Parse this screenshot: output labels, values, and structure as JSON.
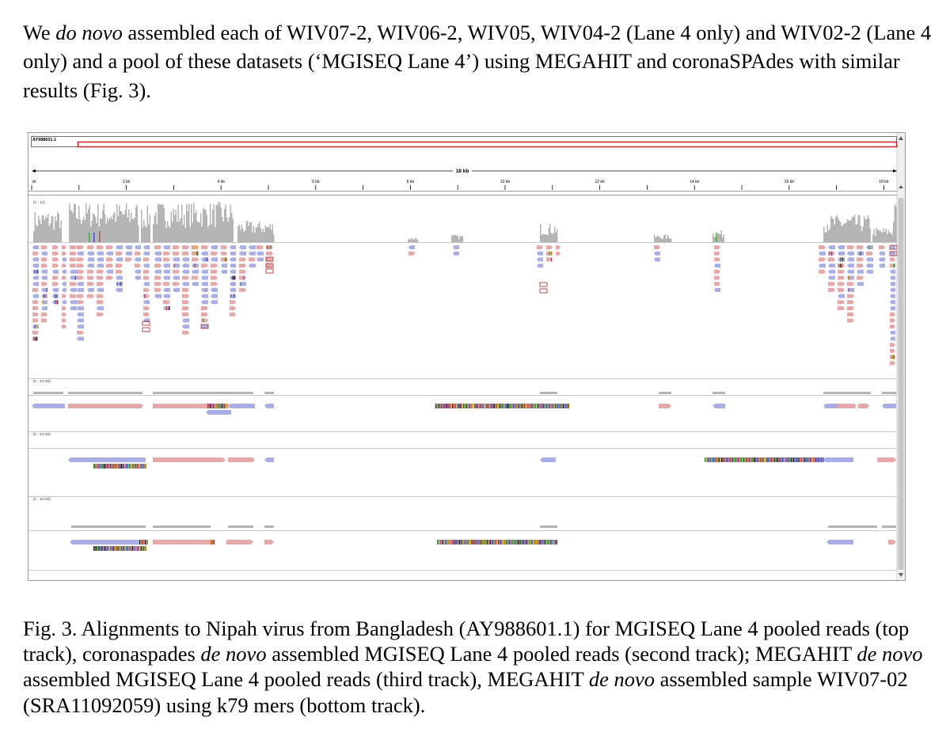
{
  "intro": {
    "t1": "We ",
    "t2": "do novo",
    "t3": " assembled each of WIV07-2, WIV06-2, WIV05, WIV04-2 (Lane 4 only) and WIV02-2 (Lane 4 only) and a pool of these datasets (‘MGISEQ Lane 4’) using MEGAHIT and coronaSPAdes with similar results (Fig. 3)."
  },
  "figure": {
    "reference": "AY988601.1",
    "span_label": "18 kb",
    "ruler_ticks": [
      "ɔb",
      "2 kb",
      "4 kb",
      "6 kb",
      "8 kb",
      "10 kb",
      "12 kb",
      "14 kb",
      "16 kb",
      "18 kb"
    ],
    "coverage_range": "[0 - 11]",
    "track_ranges": [
      "[0 - 10.00]",
      "[0 - 10.00]",
      "[0 - 10.00]"
    ],
    "colors": {
      "forward_read": "#e6a9a9",
      "reverse_read": "#a9aee6",
      "coverage": "#b4b4b4",
      "locus_box": "#cc2222"
    }
  },
  "caption": {
    "c1": "Fig. 3. Alignments to Nipah virus from Bangladesh (AY988601.1) for MGISEQ Lane 4 pooled reads (top track), coronaspades ",
    "c2": "de novo",
    "c3": " assembled MGISEQ Lane 4 pooled reads (second track); MEGAHIT ",
    "c4": "de novo",
    "c5": " assembled MGISEQ Lane 4 pooled reads (third track), MEGAHIT ",
    "c6": "de novo",
    "c7": " assembled sample WIV07-02 (SRA11092059) using k79 mers (bottom track)."
  }
}
